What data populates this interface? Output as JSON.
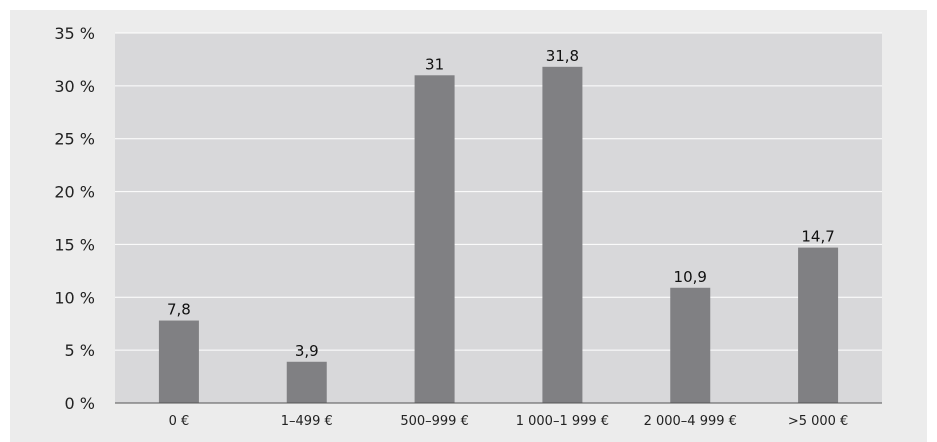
{
  "chart_data": {
    "type": "bar",
    "title": "",
    "xlabel": "",
    "ylabel": "",
    "categories": [
      "0 €",
      "1–499 €",
      "500–999 €",
      "1 000–1 999 €",
      "2 000–4 999 €",
      ">5 000 €"
    ],
    "values": [
      7.8,
      3.9,
      31,
      31.8,
      10.9,
      14.7
    ],
    "value_labels": [
      "7,8",
      "3,9",
      "31",
      "31,8",
      "10,9",
      "14,7"
    ],
    "ylim": [
      0,
      35
    ],
    "yticks": [
      0,
      5,
      10,
      15,
      20,
      25,
      30,
      35
    ],
    "ytick_labels": [
      "0 %",
      "5 %",
      "10 %",
      "15 %",
      "20 %",
      "25 %",
      "30 %",
      "35 %"
    ],
    "grid": true,
    "legend": "none",
    "colors": {
      "bar": "#808083",
      "plot_background": "#d8d8da",
      "frame_background": "#ececec",
      "gridline": "#ffffff",
      "axis": "#555555"
    }
  }
}
